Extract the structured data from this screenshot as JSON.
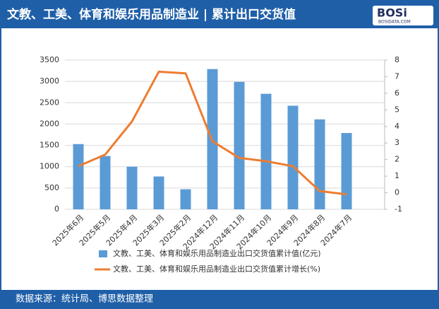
{
  "chart_data": {
    "type": "bar_line",
    "title": "文教、工美、体育和娱乐用品制造业 | 累计出口交货值",
    "source": "数据来源：统计局、博思数据整理",
    "categories": [
      "2025年6月",
      "2025年5月",
      "2025年4月",
      "2025年3月",
      "2025年2月",
      "2024年12月",
      "2024年11月",
      "2024年10月",
      "2024年9月",
      "2024年8月",
      "2024年7月"
    ],
    "series": [
      {
        "name": "文教、工美、体育和娱乐用品制造业出口交货值累计值(亿元)",
        "type": "bar",
        "color": "#5b9bd5",
        "values": [
          1530,
          1250,
          1000,
          770,
          470,
          3290,
          2990,
          2710,
          2430,
          2110,
          1790
        ]
      },
      {
        "name": "文教、工美、体育和娱乐用品制造业出口交货值累计增长(%)",
        "type": "line",
        "color": "#ed7d31",
        "axis": "y2",
        "values": [
          1.6,
          2.3,
          4.3,
          7.3,
          7.2,
          3.1,
          2.1,
          1.9,
          1.6,
          0.1,
          -0.1
        ]
      }
    ],
    "ylim": [
      0,
      3500
    ],
    "yticks": [
      0,
      500,
      1000,
      1500,
      2000,
      2500,
      3000,
      3500
    ],
    "y2lim": [
      -1,
      8
    ],
    "y2ticks": [
      -1,
      0,
      1,
      2,
      3,
      4,
      5,
      6,
      7,
      8
    ],
    "legend": "bottom"
  }
}
